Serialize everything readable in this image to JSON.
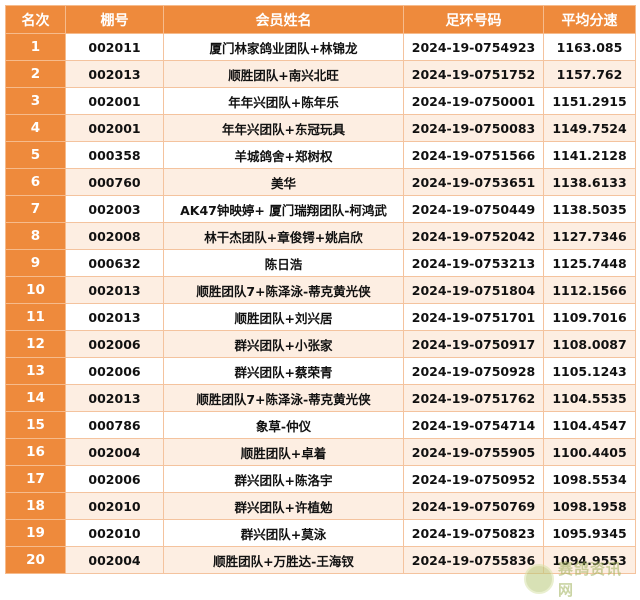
{
  "table": {
    "headers": {
      "rank": "名次",
      "loft": "棚号",
      "name": "会员姓名",
      "ring": "足环号码",
      "speed": "平均分速"
    },
    "rows": [
      {
        "rank": "1",
        "loft": "002011",
        "name": "厦门林家鸽业团队+林锦龙",
        "ring": "2024-19-0754923",
        "speed": "1163.085"
      },
      {
        "rank": "2",
        "loft": "002013",
        "name": "顺胜团队+南兴北旺",
        "ring": "2024-19-0751752",
        "speed": "1157.762"
      },
      {
        "rank": "3",
        "loft": "002001",
        "name": "年年兴团队+陈年乐",
        "ring": "2024-19-0750001",
        "speed": "1151.2915"
      },
      {
        "rank": "4",
        "loft": "002001",
        "name": "年年兴团队+东冠玩具",
        "ring": "2024-19-0750083",
        "speed": "1149.7524"
      },
      {
        "rank": "5",
        "loft": "000358",
        "name": "羊城鸽舍+郑树权",
        "ring": "2024-19-0751566",
        "speed": "1141.2128"
      },
      {
        "rank": "6",
        "loft": "000760",
        "name": "美华",
        "ring": "2024-19-0753651",
        "speed": "1138.6133"
      },
      {
        "rank": "7",
        "loft": "002003",
        "name": "AK47钟映婷+ 厦门瑞翔团队-柯鸿武",
        "ring": "2024-19-0750449",
        "speed": "1138.5035"
      },
      {
        "rank": "8",
        "loft": "002008",
        "name": "林干杰团队+章俊锷+姚启欣",
        "ring": "2024-19-0752042",
        "speed": "1127.7346"
      },
      {
        "rank": "9",
        "loft": "000632",
        "name": "陈日浩",
        "ring": "2024-19-0753213",
        "speed": "1125.7448"
      },
      {
        "rank": "10",
        "loft": "002013",
        "name": "顺胜团队7+陈泽泳-蒂克黄光侠",
        "ring": "2024-19-0751804",
        "speed": "1112.1566"
      },
      {
        "rank": "11",
        "loft": "002013",
        "name": "顺胜团队+刘兴居",
        "ring": "2024-19-0751701",
        "speed": "1109.7016"
      },
      {
        "rank": "12",
        "loft": "002006",
        "name": "群兴团队+小张家",
        "ring": "2024-19-0750917",
        "speed": "1108.0087"
      },
      {
        "rank": "13",
        "loft": "002006",
        "name": "群兴团队+蔡荣青",
        "ring": "2024-19-0750928",
        "speed": "1105.1243"
      },
      {
        "rank": "14",
        "loft": "002013",
        "name": "顺胜团队7+陈泽泳-蒂克黄光侠",
        "ring": "2024-19-0751762",
        "speed": "1104.5535"
      },
      {
        "rank": "15",
        "loft": "000786",
        "name": "象草-仲仪",
        "ring": "2024-19-0754714",
        "speed": "1104.4547"
      },
      {
        "rank": "16",
        "loft": "002004",
        "name": "顺胜团队+卓着",
        "ring": "2024-19-0755905",
        "speed": "1100.4405"
      },
      {
        "rank": "17",
        "loft": "002006",
        "name": "群兴团队+陈洛宇",
        "ring": "2024-19-0750952",
        "speed": "1098.5534"
      },
      {
        "rank": "18",
        "loft": "002010",
        "name": "群兴团队+许植勉",
        "ring": "2024-19-0750769",
        "speed": "1098.1958"
      },
      {
        "rank": "19",
        "loft": "002010",
        "name": "群兴团队+莫泳",
        "ring": "2024-19-0750823",
        "speed": "1095.9345"
      },
      {
        "rank": "20",
        "loft": "002004",
        "name": "顺胜团队+万胜达-王海钗",
        "ring": "2024-19-0755836",
        "speed": "1094.9553"
      }
    ]
  },
  "watermark": {
    "text": "赛鸽资讯网",
    "color": "#9fb25a"
  },
  "colors": {
    "header_bg": "#ee8a3c",
    "row_stripe": "#fdeee2",
    "border": "#f4c39e"
  }
}
